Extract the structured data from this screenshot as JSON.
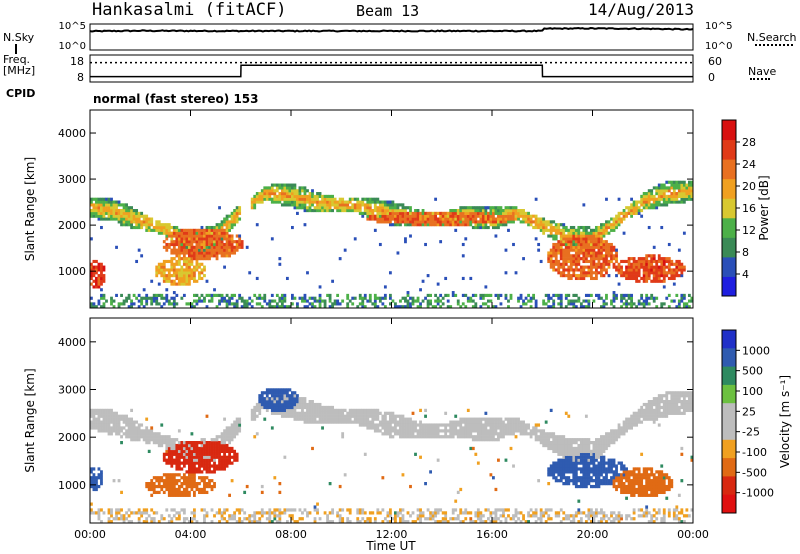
{
  "header": {
    "station": "Hankasalmi (fitACF)",
    "beam": "Beam 13",
    "date": "14/Aug/2013"
  },
  "side_labels": {
    "nsky": "N.Sky",
    "freq": "Freq.",
    "mhz": "[MHz]",
    "cpid": "CPID",
    "nsearch": "N.Search",
    "nave": "Nave"
  },
  "mode_text": "normal (fast stereo) 153",
  "colors": {
    "power": [
      "#1f1fe0",
      "#2a4fb8",
      "#3a8a56",
      "#4cb048",
      "#d8c830",
      "#f0a020",
      "#e87020",
      "#e03a18",
      "#d81010"
    ],
    "velocity": [
      "#2030c8",
      "#2f5bb0",
      "#2e8a60",
      "#6cc040",
      "#bdbdbd",
      "#bdbdbd",
      "#f0a020",
      "#e06a14",
      "#d82810",
      "#e01010"
    ],
    "ground_scatter": "#bdbdbd"
  },
  "chart_data": [
    {
      "name": "noise",
      "type": "line",
      "left_ticks": [
        "10^5",
        "10^0"
      ],
      "right_ticks": [
        "10^5",
        "10^0"
      ],
      "series": [
        {
          "name": "N.Sky",
          "x": [
            0,
            2,
            6,
            10,
            14,
            18,
            18.01,
            20,
            22,
            24
          ],
          "y": [
            0.72,
            0.74,
            0.73,
            0.73,
            0.73,
            0.73,
            0.82,
            0.83,
            0.82,
            0.79
          ]
        }
      ]
    },
    {
      "name": "frequency",
      "type": "line",
      "left_ticks": [
        "18",
        "8"
      ],
      "right_ticks": [
        "60",
        "0"
      ],
      "series": [
        {
          "name": "Freq",
          "x": [
            0,
            6,
            6.01,
            18,
            18.01,
            24
          ],
          "y": [
            0.2,
            0.2,
            0.62,
            0.62,
            0.2,
            0.2
          ]
        },
        {
          "name": "Nave",
          "x": [
            0,
            24
          ],
          "y": [
            0.72,
            0.72
          ]
        }
      ]
    },
    {
      "name": "power",
      "type": "heatmap",
      "xlabel": "",
      "ylabel": "Slant Range [km]",
      "xlim": [
        0,
        24
      ],
      "ylim": [
        200,
        4500
      ],
      "y_ticks": [
        1000,
        2000,
        3000,
        4000
      ],
      "x_ticks": [
        "00:00",
        "04:00",
        "08:00",
        "12:00",
        "16:00",
        "20:00",
        "00:00"
      ],
      "colorbar": {
        "label": "Power [dB]",
        "ticks": [
          4,
          8,
          12,
          16,
          20,
          24,
          28
        ]
      },
      "band_centre_km": [
        [
          0,
          2400
        ],
        [
          1,
          2300
        ],
        [
          2,
          2100
        ],
        [
          3,
          1900
        ],
        [
          4,
          1650
        ],
        [
          5,
          1750
        ],
        [
          6,
          2300
        ],
        [
          7,
          2700
        ],
        [
          8,
          2650
        ],
        [
          9,
          2500
        ],
        [
          10,
          2450
        ],
        [
          11,
          2400
        ],
        [
          12,
          2250
        ],
        [
          13,
          2150
        ],
        [
          14,
          2150
        ],
        [
          15,
          2200
        ],
        [
          16,
          2150
        ],
        [
          17,
          2250
        ],
        [
          18,
          2000
        ],
        [
          19,
          1750
        ],
        [
          20,
          1700
        ],
        [
          21,
          2100
        ],
        [
          22,
          2500
        ],
        [
          23,
          2700
        ],
        [
          24,
          2750
        ]
      ],
      "blobs": [
        {
          "t": 0.25,
          "r": 950,
          "w": 0.4,
          "h": 300,
          "v": 27
        },
        {
          "t": 4.5,
          "r": 1600,
          "w": 1.6,
          "h": 350,
          "v": 24
        },
        {
          "t": 3.6,
          "r": 1000,
          "w": 1.0,
          "h": 300,
          "v": 19
        },
        {
          "t": 14,
          "r": 2150,
          "w": 3.0,
          "h": 150,
          "v": 24
        },
        {
          "t": 19.6,
          "r": 1300,
          "w": 1.4,
          "h": 500,
          "v": 24
        },
        {
          "t": 22.3,
          "r": 1050,
          "w": 1.4,
          "h": 300,
          "v": 26
        }
      ]
    },
    {
      "name": "velocity",
      "type": "heatmap",
      "xlabel": "Time UT",
      "ylabel": "Slant Range [km]",
      "xlim": [
        0,
        24
      ],
      "ylim": [
        200,
        4500
      ],
      "y_ticks": [
        1000,
        2000,
        3000,
        4000
      ],
      "x_ticks": [
        "00:00",
        "04:00",
        "08:00",
        "12:00",
        "16:00",
        "20:00",
        "00:00"
      ],
      "colorbar": {
        "label": "Velocity [m s⁻¹]",
        "ticks": [
          "1000",
          "500",
          "100",
          "25",
          "-25",
          "-100",
          "-500",
          "-1000"
        ]
      },
      "blobs": [
        {
          "t": 0.2,
          "r": 1150,
          "w": 0.35,
          "h": 250,
          "v": 200
        },
        {
          "t": 4.4,
          "r": 1600,
          "w": 1.5,
          "h": 350,
          "v": -600
        },
        {
          "t": 3.6,
          "r": 1000,
          "w": 1.4,
          "h": 250,
          "v": -200
        },
        {
          "t": 7.5,
          "r": 2800,
          "w": 0.8,
          "h": 250,
          "v": 300
        },
        {
          "t": 19.8,
          "r": 1300,
          "w": 1.6,
          "h": 350,
          "v": 200
        },
        {
          "t": 22.0,
          "r": 1050,
          "w": 1.2,
          "h": 300,
          "v": -400
        }
      ]
    }
  ]
}
